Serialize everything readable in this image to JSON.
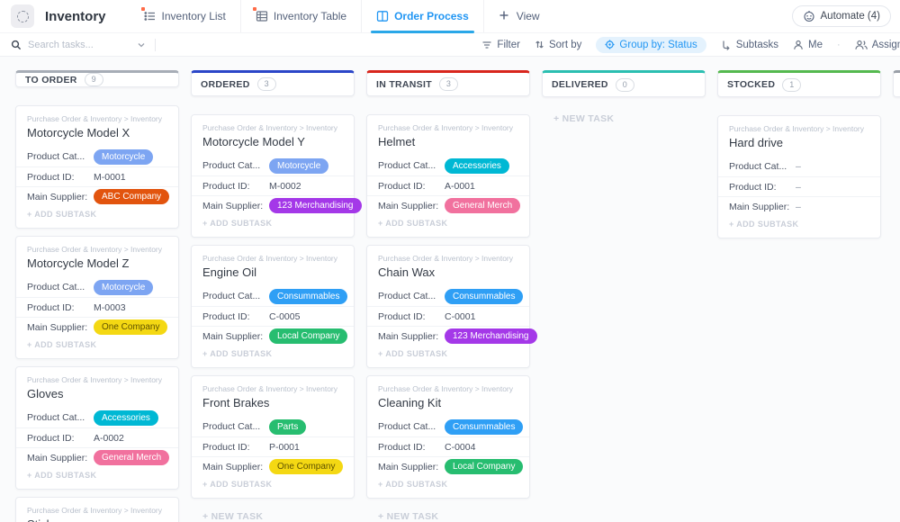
{
  "header": {
    "title": "Inventory",
    "tabs": [
      {
        "label": "Inventory List"
      },
      {
        "label": "Inventory Table"
      },
      {
        "label": "Order Process"
      },
      {
        "label": "View"
      }
    ],
    "automate_label": "Automate (4)"
  },
  "toolbar": {
    "search_placeholder": "Search tasks...",
    "filter_label": "Filter",
    "sort_label": "Sort by",
    "group_label": "Group by: Status",
    "subtasks_label": "Subtasks",
    "me_label": "Me",
    "assignee_label": "Assignee"
  },
  "icons": {
    "space-avatar": "dashed-circle",
    "list-icon": "bulleted-list",
    "table-icon": "grid-table",
    "board-icon": "kanban-board",
    "plus-icon": "+",
    "robot-icon": "robot-face",
    "search-icon": "magnifier",
    "chevron-down-icon": "v",
    "filter-icon": "funnel",
    "sort-icon": "up-down-arrows",
    "group-by-icon": "gear",
    "subtasks-icon": "branch",
    "me-icon": "person",
    "assignee-icon": "two-people"
  },
  "board": {
    "breadcrumb": "Purchase Order & Inventory  >  Inventory",
    "field_labels": {
      "category": "Product Cat...",
      "id": "Product ID:",
      "supplier": "Main Supplier:"
    },
    "add_subtask_label": "+ ADD SUBTASK",
    "new_task_label": "+ NEW TASK",
    "columns": [
      {
        "name": "TO ORDER",
        "count": "9",
        "accent": "#a7adb6",
        "new_task_bottom": false,
        "cards": [
          {
            "title": "Motorcycle Model X",
            "category": {
              "label": "Motorcycle",
              "color": "#7da5f2"
            },
            "product_id": "M-0001",
            "supplier": {
              "label": "ABC Company",
              "color": "#e2540e"
            }
          },
          {
            "title": "Motorcycle Model Z",
            "category": {
              "label": "Motorcycle",
              "color": "#7da5f2"
            },
            "product_id": "M-0003",
            "supplier": {
              "label": "One Company",
              "color": "#f4d813",
              "text_color": "#5f5200"
            }
          },
          {
            "title": "Gloves",
            "category": {
              "label": "Accessories",
              "color": "#00b8d4"
            },
            "product_id": "A-0002",
            "supplier": {
              "label": "General Merch",
              "color": "#f1719e"
            }
          },
          {
            "title": "Stickers",
            "partial": true
          }
        ]
      },
      {
        "name": "ORDERED",
        "count": "3",
        "accent": "#2b46c8",
        "new_task_bottom": true,
        "cards": [
          {
            "title": "Motorcycle Model Y",
            "category": {
              "label": "Motorcycle",
              "color": "#7da5f2"
            },
            "product_id": "M-0002",
            "supplier": {
              "label": "123 Merchandising",
              "color": "#a438e8"
            }
          },
          {
            "title": "Engine Oil",
            "category": {
              "label": "Consummables",
              "color": "#2f9ff5"
            },
            "product_id": "C-0005",
            "supplier": {
              "label": "Local Company",
              "color": "#27bd70"
            }
          },
          {
            "title": "Front Brakes",
            "category": {
              "label": "Parts",
              "color": "#27bd70"
            },
            "product_id": "P-0001",
            "supplier": {
              "label": "One Company",
              "color": "#f4d813",
              "text_color": "#5f5200"
            }
          }
        ]
      },
      {
        "name": "IN TRANSIT",
        "count": "3",
        "accent": "#d8261d",
        "new_task_bottom": true,
        "cards": [
          {
            "title": "Helmet",
            "category": {
              "label": "Accessories",
              "color": "#00b8d4"
            },
            "product_id": "A-0001",
            "supplier": {
              "label": "General Merch",
              "color": "#f1719e"
            }
          },
          {
            "title": "Chain Wax",
            "category": {
              "label": "Consummables",
              "color": "#2f9ff5"
            },
            "product_id": "C-0001",
            "supplier": {
              "label": "123 Merchandising",
              "color": "#a438e8"
            }
          },
          {
            "title": "Cleaning Kit",
            "category": {
              "label": "Consummables",
              "color": "#2f9ff5"
            },
            "product_id": "C-0004",
            "supplier": {
              "label": "Local Company",
              "color": "#27bd70"
            }
          }
        ]
      },
      {
        "name": "DELIVERED",
        "count": "0",
        "accent": "#2bbfb1",
        "new_task_top": true,
        "cards": []
      },
      {
        "name": "STOCKED",
        "count": "1",
        "accent": "#55b94f",
        "new_task_bottom": false,
        "cards": [
          {
            "title": "Hard drive",
            "category": "–",
            "product_id": "–",
            "supplier": "–"
          }
        ]
      },
      {
        "name": "",
        "count": "",
        "accent": "#9aa0a8",
        "sliver": true,
        "cards": []
      }
    ]
  }
}
